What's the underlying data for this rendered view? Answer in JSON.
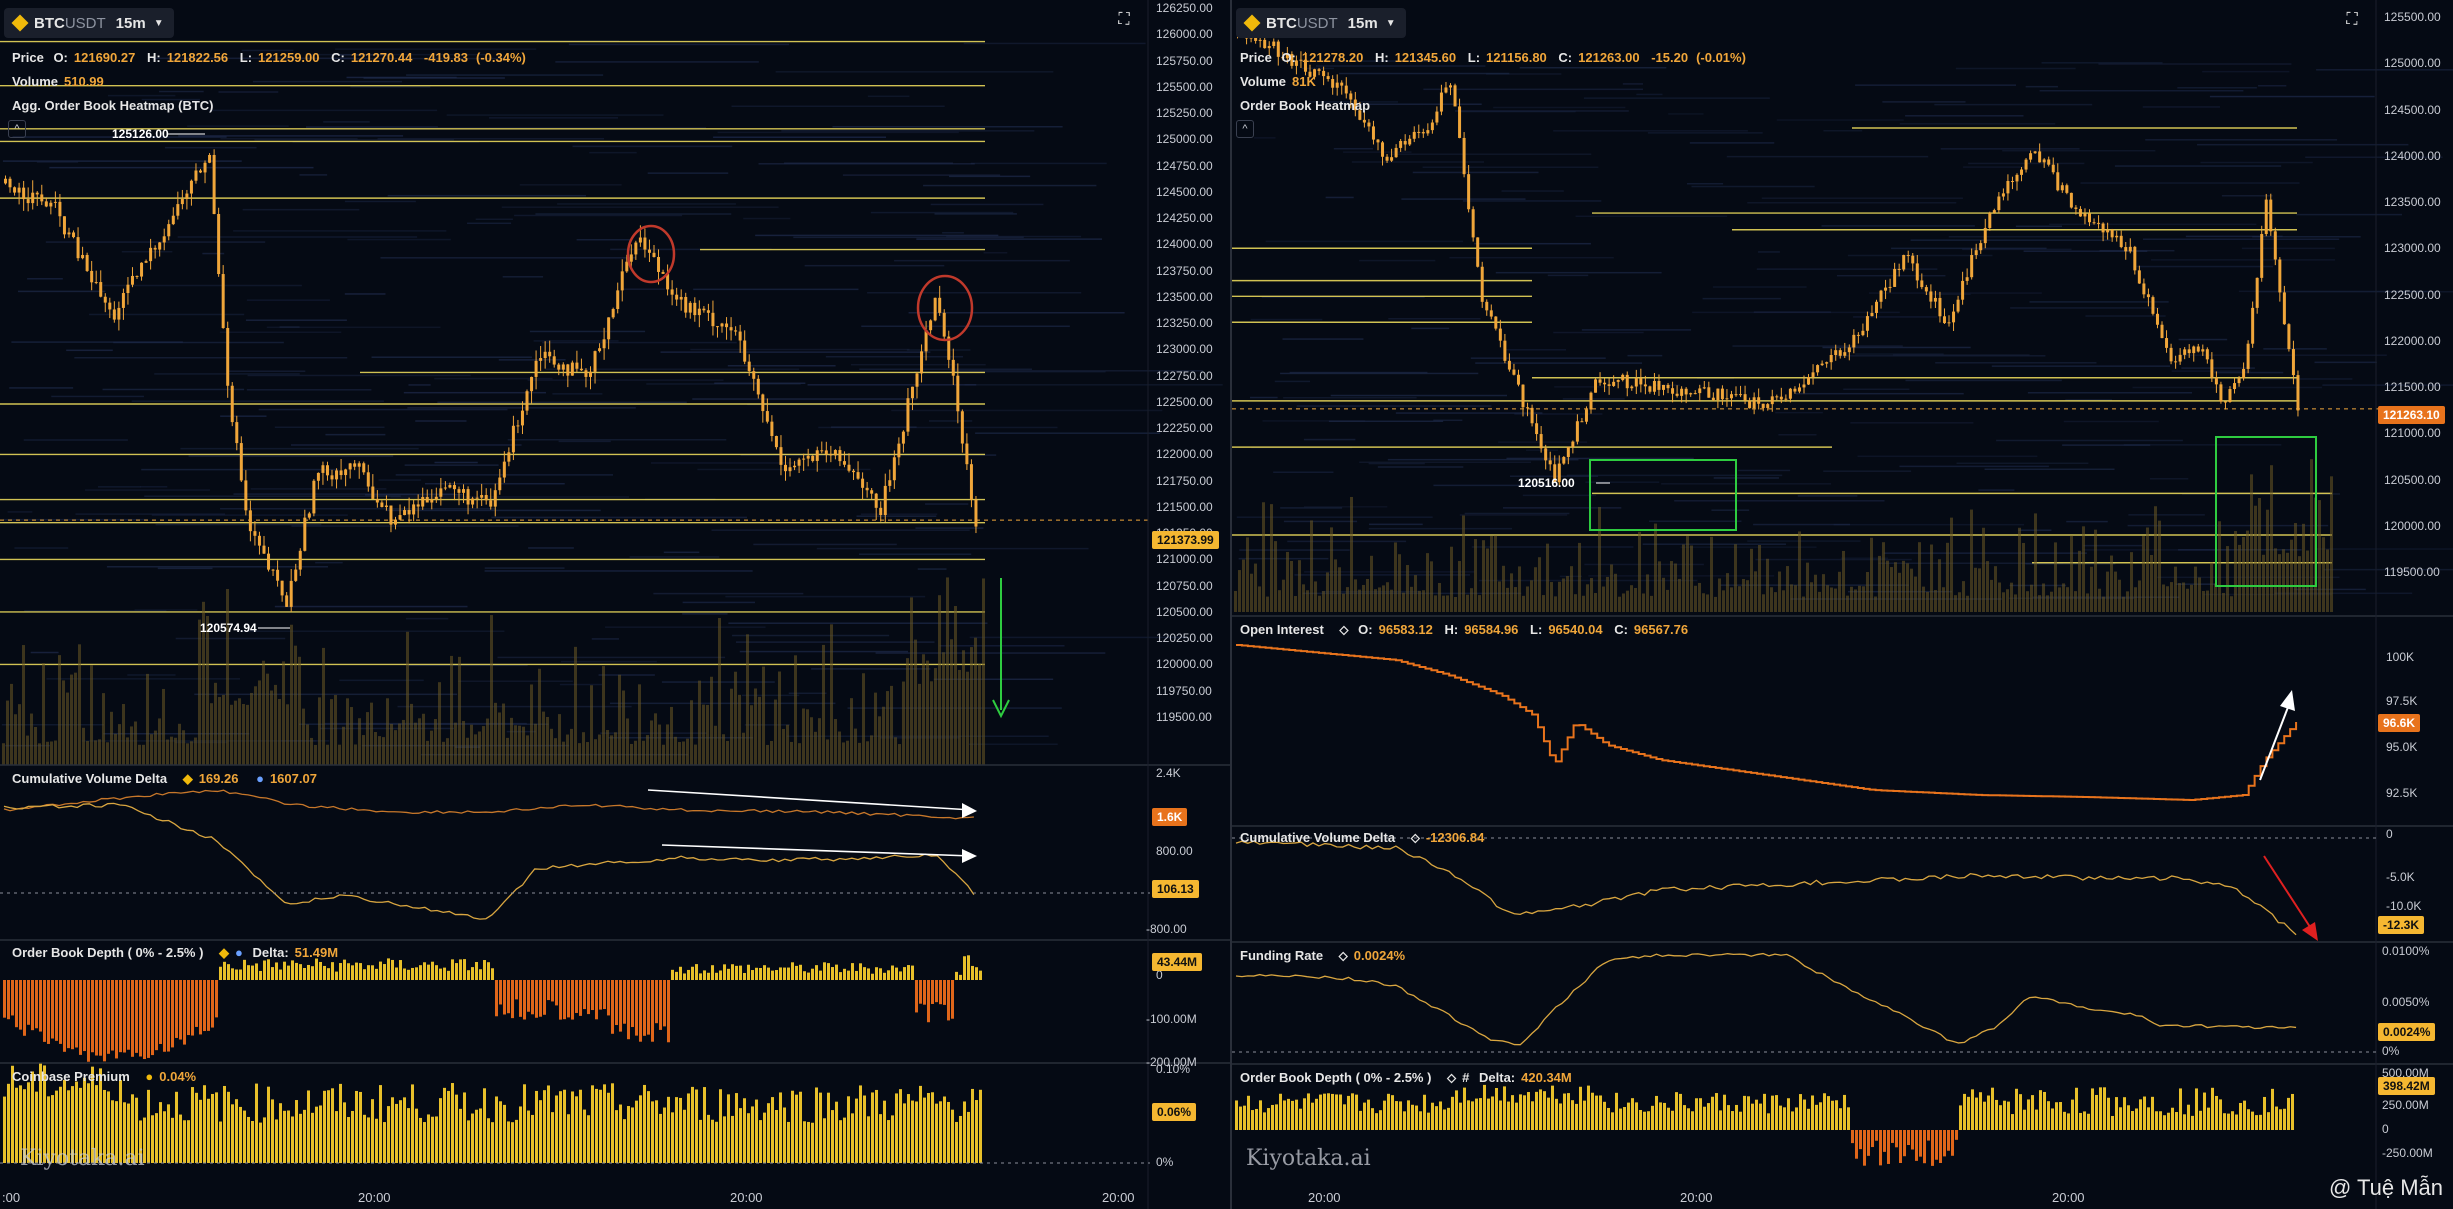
{
  "left": {
    "symbol": {
      "base": "BTC",
      "quote": "USDT",
      "timeframe": "15m"
    },
    "price_ohlc": {
      "label": "Price",
      "o_label": "O:",
      "o": "121690.27",
      "h_label": "H:",
      "h": "121822.56",
      "l_label": "L:",
      "l": "121259.00",
      "c_label": "C:",
      "c": "121270.44",
      "change": "-419.83",
      "change_pct": "(-0.34%)"
    },
    "volume": {
      "label": "Volume",
      "value": "510.99"
    },
    "heatmap_label": "Agg. Order Book Heatmap (BTC)",
    "high_tag": "125126.00",
    "low_tag": "120574.94",
    "price_axis": [
      "126250.00",
      "126000.00",
      "125750.00",
      "125500.00",
      "125250.00",
      "125000.00",
      "124750.00",
      "124500.00",
      "124250.00",
      "124000.00",
      "123750.00",
      "123500.00",
      "123250.00",
      "123000.00",
      "122750.00",
      "122500.00",
      "122250.00",
      "122000.00",
      "121750.00",
      "121500.00",
      "121250.00",
      "121000.00",
      "120750.00",
      "120500.00",
      "120250.00",
      "120000.00",
      "119750.00",
      "119500.00"
    ],
    "last_price": "121373.99",
    "cvd": {
      "label": "Cumulative Volume Delta",
      "v1": "169.26",
      "v2": "1607.07",
      "axis": [
        "2.4K",
        "800.00",
        "-800.00"
      ],
      "pill1": "1.6K",
      "pill2": "106.13"
    },
    "obd": {
      "label": "Order Book Depth ( 0% - 2.5% )",
      "delta_label": "Delta:",
      "delta": "51.49M",
      "axis": [
        "0",
        "-100.00M",
        "-200.00M"
      ],
      "pill": "43.44M"
    },
    "cbp": {
      "label": "Coinbase Premium",
      "value": "0.04%",
      "axis": [
        "0.10%",
        "0%"
      ],
      "pill": "0.06%"
    },
    "time_labels": [
      ":00",
      "20:00",
      "20:00",
      "20:00"
    ],
    "watermark": "Kiyotaka.ai"
  },
  "right": {
    "symbol": {
      "base": "BTC",
      "quote": "USDT",
      "timeframe": "15m"
    },
    "price_ohlc": {
      "label": "Price",
      "o_label": "O:",
      "o": "121278.20",
      "h_label": "H:",
      "h": "121345.60",
      "l_label": "L:",
      "l": "121156.80",
      "c_label": "C:",
      "c": "121263.00",
      "change": "-15.20",
      "change_pct": "(-0.01%)"
    },
    "volume": {
      "label": "Volume",
      "value": "81K"
    },
    "heatmap_label": "Order Book Heatmap",
    "low_tag": "120516.00",
    "price_axis": [
      "125500.00",
      "125000.00",
      "124500.00",
      "124000.00",
      "123500.00",
      "123000.00",
      "122500.00",
      "122000.00",
      "121500.00",
      "121000.00",
      "120500.00",
      "120000.00",
      "119500.00"
    ],
    "last_price": "121263.10",
    "oi": {
      "label": "Open Interest",
      "o_label": "O:",
      "o": "96583.12",
      "h_label": "H:",
      "h": "96584.96",
      "l_label": "L:",
      "l": "96540.04",
      "c_label": "C:",
      "c": "96567.76",
      "axis": [
        "100K",
        "97.5K",
        "95.0K",
        "92.5K"
      ],
      "pill": "96.6K"
    },
    "cvd": {
      "label": "Cumulative Volume Delta",
      "value": "-12306.84",
      "axis": [
        "0",
        "-5.0K",
        "-10.0K"
      ],
      "pill": "-12.3K"
    },
    "funding": {
      "label": "Funding Rate",
      "value": "0.0024%",
      "axis": [
        "0.0100%",
        "0.0050%",
        "0%"
      ],
      "pill": "0.0024%"
    },
    "obd": {
      "label": "Order Book Depth ( 0% - 2.5% )",
      "delta_label": "Delta:",
      "delta": "420.34M",
      "axis": [
        "500.00M",
        "250.00M",
        "0",
        "-250.00M"
      ],
      "pill": "398.42M"
    },
    "time_labels": [
      "20:00",
      "20:00",
      "20:00"
    ],
    "watermark": "Kiyotaka.ai"
  },
  "credit": "@ Tuệ Mẫn",
  "colors": {
    "bg": "#050a14",
    "candle": "#f0a63a",
    "level": "#e8d65a",
    "cvd_line": "#d9a640",
    "obd_pos": "#e8c02a",
    "obd_neg": "#e0661a",
    "pill": "#f5b731",
    "circle": "#c0392b",
    "box": "#2ecc40",
    "arrow_green": "#2ecc40",
    "arrow_red": "#e02020",
    "arrow_white": "#ffffff"
  }
}
